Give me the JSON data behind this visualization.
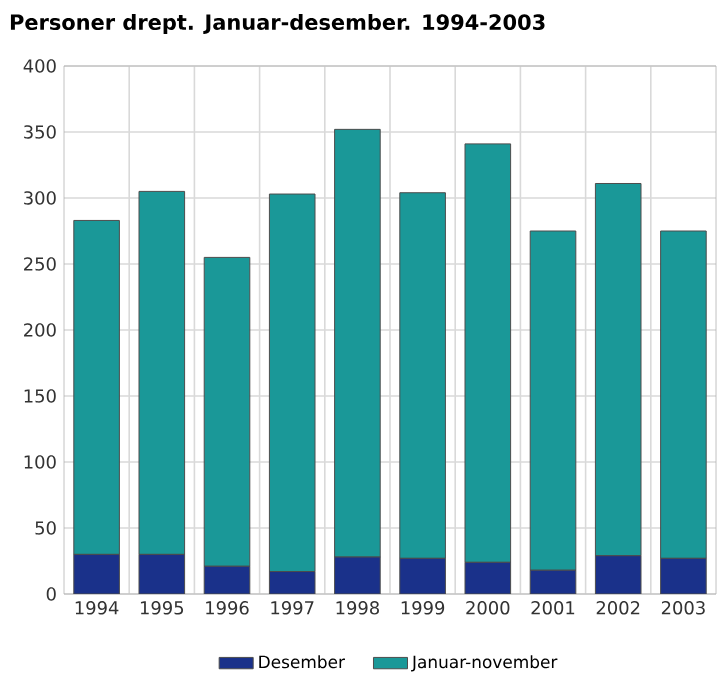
{
  "chart_data": {
    "type": "bar",
    "title": "Personer drept. Januar-desember. 1994-2003",
    "categories": [
      "1994",
      "1995",
      "1996",
      "1997",
      "1998",
      "1999",
      "2000",
      "2001",
      "2002",
      "2003"
    ],
    "stacked": true,
    "series": [
      {
        "name": "Desember",
        "color": "#1a318a",
        "values": [
          30,
          30,
          21,
          17,
          28,
          27,
          24,
          18,
          29,
          27
        ]
      },
      {
        "name": "Januar-november",
        "color": "#1a9898",
        "values": [
          253,
          275,
          234,
          286,
          324,
          277,
          317,
          257,
          282,
          248
        ]
      }
    ],
    "ylim": [
      0,
      400
    ],
    "yticks": [
      0,
      50,
      100,
      150,
      200,
      250,
      300,
      350,
      400
    ],
    "grid": true,
    "legend": "bottom"
  }
}
